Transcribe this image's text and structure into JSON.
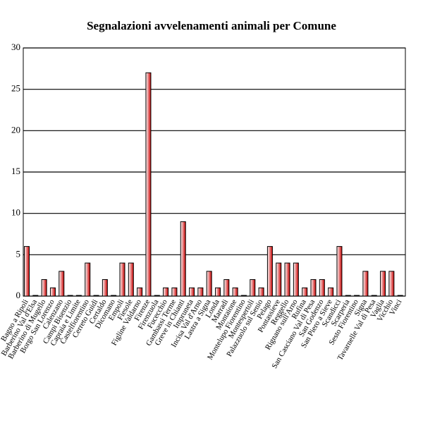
{
  "chart_data": {
    "type": "bar",
    "title": "Segnalazioni avvelenamenti animali per Comune",
    "categories": [
      "Bagno a Ripoli",
      "Barberino Val d'Elsa",
      "Barberino di Mugello",
      "Borgo San Lorenzo",
      "Calenzano",
      "Campi Bisenzio",
      "Capraia e Limite",
      "Castelfiorentino",
      "Cerreto Guidi",
      "Certaldo",
      "Dicomano",
      "Empoli",
      "Fiesole",
      "Figline Valdarno",
      "Firenze",
      "Firenzuola",
      "Fucecchio",
      "Gambassi Terme",
      "Greve in Chianti",
      "Impruneta",
      "Incisa Val d'Arno",
      "Lastra a Signa",
      "Londa",
      "Marradi",
      "Montaione",
      "Montelupo Fiorentino",
      "Montespertoli",
      "Palazzuolo sul Senio",
      "Pelago",
      "Pontassieve",
      "Reggello",
      "Rignano sull'Arno",
      "Rufina",
      "San Casciano Val di Pesa",
      "San Godenzo",
      "San Piero a Sieve",
      "Scandicci",
      "Scarperia",
      "Sesto Fiorentino",
      "Signa",
      "Tavarnelle Val di Pesa",
      "Vaglia",
      "Vicchio",
      "Vinci"
    ],
    "values": [
      6,
      0,
      2,
      1,
      3,
      0,
      0,
      4,
      0,
      2,
      0,
      4,
      4,
      1,
      27,
      0,
      1,
      1,
      9,
      1,
      1,
      3,
      1,
      2,
      1,
      0,
      2,
      1,
      6,
      4,
      4,
      4,
      1,
      2,
      2,
      1,
      6,
      0,
      0,
      3,
      0,
      3,
      3,
      0
    ],
    "color": "#cc0000",
    "ylim": [
      0,
      30
    ],
    "yticks": [
      0,
      5,
      10,
      15,
      20,
      25,
      30
    ],
    "grid": true
  }
}
